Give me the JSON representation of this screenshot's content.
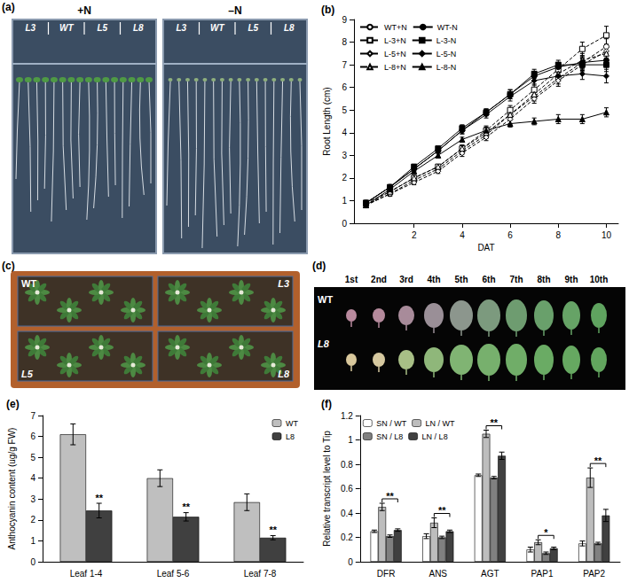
{
  "chart_data": [
    {
      "panel": "(b)",
      "type": "line",
      "x_label": "DAT",
      "y_label": "Root Length (cm)",
      "x": [
        0,
        1,
        2,
        3,
        4,
        5,
        6,
        7,
        8,
        9,
        10
      ],
      "xlim": [
        -0.5,
        10.5
      ],
      "xticks": [
        2,
        4,
        6,
        8,
        10
      ],
      "ylim": [
        0,
        9
      ],
      "yticks": [
        0,
        1,
        2,
        3,
        4,
        5,
        6,
        7,
        8,
        9
      ],
      "grid": false,
      "legend": "upper left",
      "series": [
        {
          "name": "WT+N",
          "color": "#000000",
          "marker": "open-circle",
          "line_style": "dashed",
          "values": [
            0.8,
            1.3,
            1.9,
            2.4,
            3.2,
            3.9,
            4.8,
            5.6,
            6.4,
            7.1,
            7.8
          ],
          "errors": [
            0.05,
            0.1,
            0.1,
            0.1,
            0.15,
            0.15,
            0.2,
            0.2,
            0.25,
            0.3,
            0.35
          ]
        },
        {
          "name": "L-3+N",
          "color": "#000000",
          "marker": "open-rect",
          "line_style": "dashed",
          "values": [
            0.9,
            1.4,
            2.0,
            2.5,
            3.3,
            4.1,
            5.0,
            5.9,
            6.8,
            7.7,
            8.3
          ],
          "errors": [
            0.05,
            0.1,
            0.1,
            0.1,
            0.15,
            0.2,
            0.2,
            0.25,
            0.3,
            0.3,
            0.4
          ]
        },
        {
          "name": "L-5+N",
          "color": "#000000",
          "marker": "open-diamond",
          "line_style": "dashed",
          "values": [
            0.8,
            1.3,
            1.8,
            2.3,
            3.1,
            3.8,
            4.6,
            5.5,
            6.3,
            7.0,
            7.6
          ],
          "errors": [
            0.05,
            0.1,
            0.1,
            0.1,
            0.15,
            0.15,
            0.2,
            0.2,
            0.25,
            0.3,
            0.3
          ]
        },
        {
          "name": "L-8+N",
          "color": "#000000",
          "marker": "open-triangle",
          "line_style": "dashed",
          "values": [
            0.8,
            1.4,
            2.0,
            2.5,
            3.3,
            4.0,
            4.8,
            5.7,
            6.6,
            7.2,
            7.5
          ],
          "errors": [
            0.05,
            0.1,
            0.1,
            0.1,
            0.15,
            0.15,
            0.2,
            0.2,
            0.25,
            0.3,
            0.35
          ]
        },
        {
          "name": "WT-N",
          "color": "#000000",
          "marker": "circle",
          "line_style": "solid",
          "values": [
            0.9,
            1.6,
            2.4,
            3.2,
            4.1,
            4.9,
            5.7,
            6.5,
            6.9,
            7.1,
            7.2
          ],
          "errors": [
            0.05,
            0.1,
            0.1,
            0.1,
            0.15,
            0.15,
            0.2,
            0.2,
            0.2,
            0.25,
            0.3
          ]
        },
        {
          "name": "L-3-N",
          "color": "#000000",
          "marker": "rect",
          "line_style": "solid",
          "values": [
            0.9,
            1.6,
            2.5,
            3.3,
            4.2,
            4.9,
            5.7,
            6.6,
            7.0,
            7.0,
            7.0
          ],
          "errors": [
            0.05,
            0.1,
            0.1,
            0.1,
            0.15,
            0.15,
            0.2,
            0.2,
            0.2,
            0.25,
            0.3
          ]
        },
        {
          "name": "L-5-N",
          "color": "#000000",
          "marker": "diamond",
          "line_style": "solid",
          "values": [
            0.9,
            1.6,
            2.4,
            3.2,
            4.1,
            4.8,
            5.6,
            6.3,
            6.5,
            6.6,
            6.5
          ],
          "errors": [
            0.05,
            0.1,
            0.1,
            0.1,
            0.15,
            0.15,
            0.2,
            0.2,
            0.2,
            0.25,
            0.3
          ]
        },
        {
          "name": "L-8-N",
          "color": "#000000",
          "marker": "triangle",
          "line_style": "solid",
          "values": [
            0.8,
            1.5,
            2.3,
            3.0,
            3.7,
            4.1,
            4.4,
            4.5,
            4.6,
            4.6,
            4.9
          ],
          "errors": [
            0.05,
            0.1,
            0.1,
            0.1,
            0.1,
            0.15,
            0.15,
            0.15,
            0.2,
            0.2,
            0.2
          ]
        }
      ]
    },
    {
      "panel": "(e)",
      "type": "bar",
      "y_label": "Anthocyanin content (ug/g FW)",
      "categories": [
        "Leaf 1-4",
        "Leaf 5-6",
        "Leaf 7-8"
      ],
      "ylim": [
        0,
        7
      ],
      "yticks": [
        0,
        1,
        2,
        3,
        4,
        5,
        6,
        7
      ],
      "grid": false,
      "legend": "upper right",
      "series": [
        {
          "name": "WT",
          "color": "#bfbfbf",
          "values": [
            6.1,
            4.0,
            2.85
          ],
          "errors": [
            0.5,
            0.4,
            0.4
          ]
        },
        {
          "name": "L8",
          "color": "#404040",
          "values": [
            2.45,
            2.15,
            1.15
          ],
          "errors": [
            0.35,
            0.2,
            0.1
          ]
        }
      ],
      "annotations": [
        {
          "category": "Leaf 1-4",
          "series": "L8",
          "text": "**"
        },
        {
          "category": "Leaf 5-6",
          "series": "L8",
          "text": "**"
        },
        {
          "category": "Leaf 7-8",
          "series": "L8",
          "text": "**"
        }
      ]
    },
    {
      "panel": "(f)",
      "type": "bar",
      "y_label": "Relative transcript level to Tip",
      "categories": [
        "DFR",
        "ANS",
        "AGT",
        "PAP1",
        "PAP2"
      ],
      "ylim": [
        0,
        1.2
      ],
      "yticks": [
        0,
        0.2,
        0.4,
        0.6,
        0.8,
        1,
        1.2
      ],
      "grid": false,
      "legend": "upper left",
      "series": [
        {
          "name": "SN / WT",
          "color": "#ffffff",
          "values": [
            0.25,
            0.21,
            0.71,
            0.1,
            0.15
          ],
          "errors": [
            0.01,
            0.02,
            0.01,
            0.02,
            0.02
          ]
        },
        {
          "name": "LN / WT",
          "color": "#bdbdbd",
          "values": [
            0.45,
            0.32,
            1.05,
            0.16,
            0.69
          ],
          "errors": [
            0.03,
            0.04,
            0.03,
            0.02,
            0.08
          ]
        },
        {
          "name": "SN / L8",
          "color": "#808080",
          "values": [
            0.21,
            0.2,
            0.69,
            0.07,
            0.15
          ],
          "errors": [
            0.01,
            0.01,
            0.01,
            0.01,
            0.01
          ]
        },
        {
          "name": "LN / L8",
          "color": "#404040",
          "values": [
            0.26,
            0.25,
            0.87,
            0.11,
            0.38
          ],
          "errors": [
            0.01,
            0.01,
            0.03,
            0.01,
            0.05
          ]
        }
      ],
      "annotations": [
        {
          "category": "DFR",
          "from": "LN / WT",
          "to": "LN / L8",
          "text": "**"
        },
        {
          "category": "ANS",
          "from": "LN / WT",
          "to": "LN / L8",
          "text": "**"
        },
        {
          "category": "AGT",
          "from": "LN / WT",
          "to": "LN / L8",
          "text": "**"
        },
        {
          "category": "PAP1",
          "from": "LN / WT",
          "to": "LN / L8",
          "text": "*"
        },
        {
          "category": "PAP2",
          "from": "LN / WT",
          "to": "LN / L8",
          "text": "**"
        }
      ]
    }
  ],
  "images": [
    {
      "panel": "(a)",
      "plates": [
        {
          "label": "+N",
          "lines": [
            "L3",
            "WT",
            "L5",
            "L8"
          ]
        },
        {
          "label": "–N",
          "lines": [
            "L3",
            "WT",
            "L5",
            "L8"
          ]
        }
      ]
    },
    {
      "panel": "(c)",
      "labels": [
        "WT",
        "L3",
        "L5",
        "L8"
      ]
    },
    {
      "panel": "(d)",
      "leaf_labels": [
        "1st",
        "2nd",
        "3rd",
        "4th",
        "5th",
        "6th",
        "7th",
        "8th",
        "9th",
        "10th"
      ],
      "rows": [
        "WT",
        "L8"
      ]
    }
  ]
}
